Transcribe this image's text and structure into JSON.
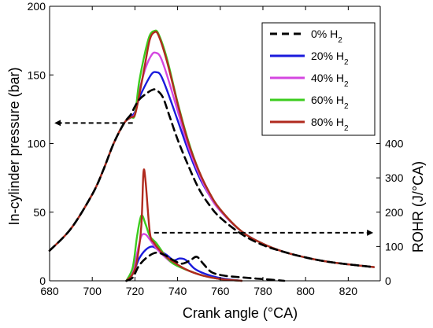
{
  "chart_data": {
    "type": "line",
    "xlabel": "Crank angle (°CA)",
    "ylabel_left": "In-cylinder pressure (bar)",
    "ylabel_right": "ROHR (J/°CA)",
    "xlim": [
      680,
      835
    ],
    "xticks": [
      680,
      700,
      720,
      740,
      760,
      780,
      800,
      820
    ],
    "ylim_left": [
      0,
      200
    ],
    "yticks_left": [
      0,
      50,
      100,
      150,
      200
    ],
    "ylim_right": [
      0,
      800
    ],
    "yticks_right": [
      0,
      100,
      200,
      300,
      400
    ],
    "grid": false,
    "legend_position": "top-right",
    "legend_prefixes": [
      "0%",
      "20%",
      "40%",
      "60%",
      "80%"
    ],
    "legend_suffix_base": "H",
    "legend_suffix_sub": "2",
    "series_styles": [
      {
        "color": "#000000",
        "dash": true
      },
      {
        "color": "#1a1adc",
        "dash": false
      },
      {
        "color": "#d447e0",
        "dash": false
      },
      {
        "color": "#3ccc1e",
        "dash": false
      },
      {
        "color": "#b02a1e",
        "dash": false
      }
    ],
    "pressure_series": [
      {
        "name": "0% H2",
        "points": [
          [
            680,
            22
          ],
          [
            690,
            38
          ],
          [
            700,
            63
          ],
          [
            705,
            80
          ],
          [
            710,
            100
          ],
          [
            715,
            115
          ],
          [
            718,
            121
          ],
          [
            720,
            127
          ],
          [
            722,
            132
          ],
          [
            725,
            136
          ],
          [
            728,
            139
          ],
          [
            730,
            139
          ],
          [
            733,
            134
          ],
          [
            736,
            121
          ],
          [
            740,
            103
          ],
          [
            745,
            84
          ],
          [
            750,
            67
          ],
          [
            755,
            55
          ],
          [
            760,
            46
          ],
          [
            770,
            34
          ],
          [
            780,
            26
          ],
          [
            790,
            21
          ],
          [
            800,
            17
          ],
          [
            810,
            14
          ],
          [
            820,
            12
          ],
          [
            832,
            10
          ]
        ]
      },
      {
        "name": "20% H2",
        "points": [
          [
            680,
            22
          ],
          [
            690,
            38
          ],
          [
            700,
            63
          ],
          [
            705,
            80
          ],
          [
            710,
            100
          ],
          [
            715,
            115
          ],
          [
            718,
            119
          ],
          [
            720,
            123
          ],
          [
            722,
            133
          ],
          [
            725,
            143
          ],
          [
            728,
            151
          ],
          [
            730,
            152
          ],
          [
            732,
            150
          ],
          [
            735,
            139
          ],
          [
            740,
            117
          ],
          [
            745,
            95
          ],
          [
            750,
            76
          ],
          [
            755,
            62
          ],
          [
            760,
            51
          ],
          [
            770,
            36
          ],
          [
            780,
            27
          ],
          [
            790,
            21
          ],
          [
            800,
            17
          ],
          [
            810,
            14
          ],
          [
            820,
            12
          ],
          [
            832,
            10
          ]
        ]
      },
      {
        "name": "40% H2",
        "points": [
          [
            680,
            22
          ],
          [
            690,
            38
          ],
          [
            700,
            63
          ],
          [
            705,
            80
          ],
          [
            710,
            100
          ],
          [
            715,
            115
          ],
          [
            718,
            119
          ],
          [
            720,
            122
          ],
          [
            722,
            138
          ],
          [
            725,
            155
          ],
          [
            728,
            165
          ],
          [
            730,
            166
          ],
          [
            732,
            163
          ],
          [
            735,
            150
          ],
          [
            740,
            124
          ],
          [
            745,
            98
          ],
          [
            750,
            78
          ],
          [
            755,
            62
          ],
          [
            760,
            51
          ],
          [
            770,
            36
          ],
          [
            780,
            27
          ],
          [
            790,
            21
          ],
          [
            800,
            17
          ],
          [
            810,
            14
          ],
          [
            820,
            12
          ],
          [
            832,
            10
          ]
        ]
      },
      {
        "name": "60% H2",
        "points": [
          [
            680,
            22
          ],
          [
            690,
            38
          ],
          [
            700,
            63
          ],
          [
            705,
            80
          ],
          [
            710,
            100
          ],
          [
            715,
            115
          ],
          [
            718,
            119
          ],
          [
            720,
            121
          ],
          [
            722,
            145
          ],
          [
            725,
            168
          ],
          [
            727,
            179
          ],
          [
            729,
            182
          ],
          [
            731,
            180
          ],
          [
            735,
            162
          ],
          [
            740,
            130
          ],
          [
            745,
            102
          ],
          [
            750,
            80
          ],
          [
            755,
            64
          ],
          [
            760,
            52
          ],
          [
            770,
            36
          ],
          [
            780,
            27
          ],
          [
            790,
            21
          ],
          [
            800,
            17
          ],
          [
            810,
            14
          ],
          [
            820,
            12
          ],
          [
            832,
            10
          ]
        ]
      },
      {
        "name": "80% H2",
        "points": [
          [
            680,
            22
          ],
          [
            690,
            38
          ],
          [
            700,
            63
          ],
          [
            705,
            80
          ],
          [
            710,
            100
          ],
          [
            715,
            115
          ],
          [
            718,
            119
          ],
          [
            720,
            121
          ],
          [
            722,
            135
          ],
          [
            725,
            160
          ],
          [
            727,
            176
          ],
          [
            729,
            181
          ],
          [
            731,
            179
          ],
          [
            735,
            160
          ],
          [
            740,
            129
          ],
          [
            745,
            101
          ],
          [
            750,
            80
          ],
          [
            755,
            64
          ],
          [
            760,
            52
          ],
          [
            770,
            36
          ],
          [
            780,
            27
          ],
          [
            790,
            21
          ],
          [
            800,
            17
          ],
          [
            810,
            14
          ],
          [
            820,
            12
          ],
          [
            832,
            10
          ]
        ]
      }
    ],
    "rohr_series": [
      {
        "name": "0% H2",
        "points": [
          [
            716,
            0
          ],
          [
            719,
            10
          ],
          [
            722,
            45
          ],
          [
            726,
            70
          ],
          [
            730,
            82
          ],
          [
            734,
            75
          ],
          [
            738,
            60
          ],
          [
            742,
            50
          ],
          [
            746,
            60
          ],
          [
            749,
            70
          ],
          [
            752,
            50
          ],
          [
            756,
            25
          ],
          [
            762,
            15
          ],
          [
            770,
            10
          ],
          [
            780,
            5
          ],
          [
            790,
            0
          ]
        ]
      },
      {
        "name": "20% H2",
        "points": [
          [
            716,
            0
          ],
          [
            719,
            20
          ],
          [
            722,
            65
          ],
          [
            725,
            90
          ],
          [
            728,
            100
          ],
          [
            731,
            90
          ],
          [
            735,
            75
          ],
          [
            738,
            60
          ],
          [
            741,
            65
          ],
          [
            744,
            60
          ],
          [
            748,
            35
          ],
          [
            753,
            20
          ],
          [
            760,
            8
          ],
          [
            770,
            0
          ]
        ]
      },
      {
        "name": "40% H2",
        "points": [
          [
            716,
            0
          ],
          [
            719,
            25
          ],
          [
            721,
            80
          ],
          [
            723,
            130
          ],
          [
            725,
            135
          ],
          [
            727,
            120
          ],
          [
            730,
            95
          ],
          [
            734,
            70
          ],
          [
            738,
            50
          ],
          [
            745,
            30
          ],
          [
            752,
            15
          ],
          [
            760,
            5
          ],
          [
            770,
            0
          ]
        ]
      },
      {
        "name": "60% H2",
        "points": [
          [
            716,
            0
          ],
          [
            719,
            40
          ],
          [
            721,
            130
          ],
          [
            723,
            190
          ],
          [
            725,
            165
          ],
          [
            727,
            130
          ],
          [
            730,
            110
          ],
          [
            734,
            75
          ],
          [
            738,
            50
          ],
          [
            745,
            30
          ],
          [
            752,
            15
          ],
          [
            760,
            5
          ],
          [
            770,
            0
          ]
        ]
      },
      {
        "name": "80% H2",
        "points": [
          [
            716,
            0
          ],
          [
            719,
            20
          ],
          [
            721,
            60
          ],
          [
            723,
            160
          ],
          [
            724,
            315
          ],
          [
            725,
            290
          ],
          [
            727,
            140
          ],
          [
            729,
            110
          ],
          [
            733,
            80
          ],
          [
            738,
            55
          ],
          [
            745,
            30
          ],
          [
            752,
            15
          ],
          [
            760,
            5
          ],
          [
            770,
            0
          ]
        ]
      }
    ],
    "arrows": [
      {
        "axis": "left",
        "from": [
          719,
          115
        ],
        "to": [
          683,
          115
        ]
      },
      {
        "axis": "left",
        "from": [
          729,
          35
        ],
        "to": [
          831,
          35
        ]
      }
    ]
  }
}
